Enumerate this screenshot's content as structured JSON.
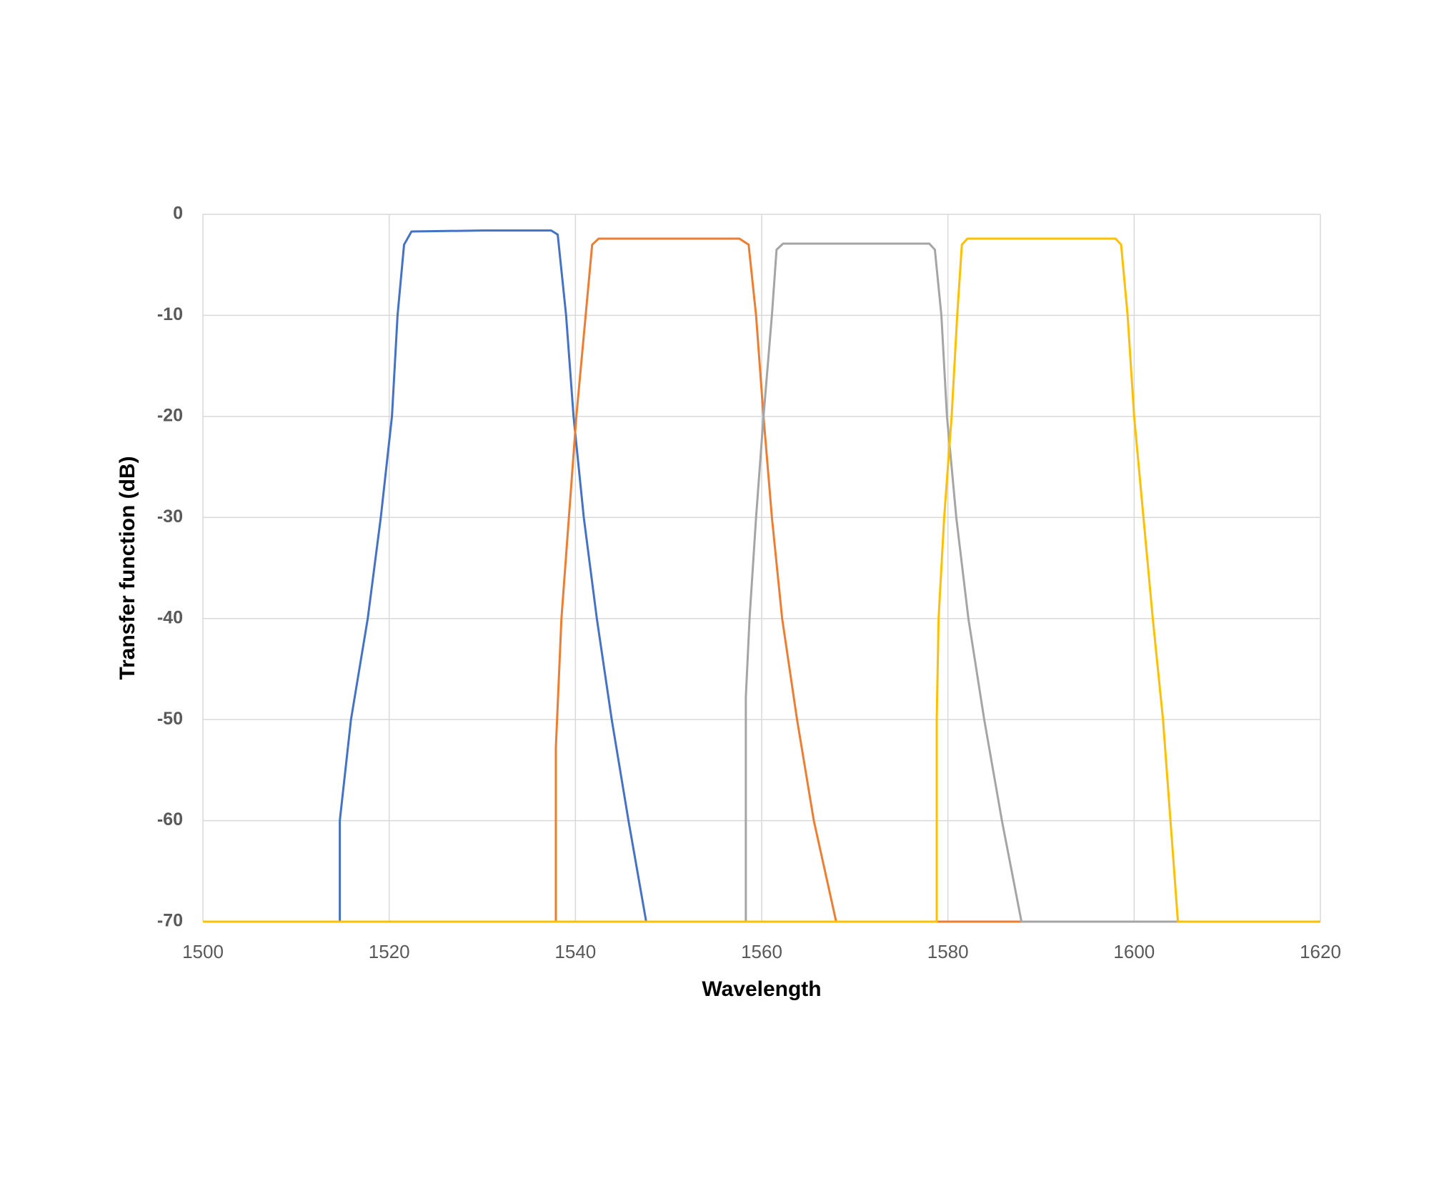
{
  "chart_data": {
    "type": "line",
    "x_label": "Wavelength",
    "y_label": "Transfer function (dB)",
    "xlim": [
      1500,
      1620
    ],
    "xticks": [
      1500,
      1520,
      1540,
      1560,
      1580,
      1600,
      1620
    ],
    "ylim": [
      -70,
      0
    ],
    "yticks": [
      0,
      -10,
      -20,
      -30,
      -40,
      -50,
      -60,
      -70
    ],
    "grid": true,
    "series": [
      {
        "color": "#4472c4",
        "x": [
          1500,
          1514.7,
          1514.7,
          1515.9,
          1517.7,
          1519.1,
          1520.3,
          1520.9,
          1521.6,
          1522.4,
          1530,
          1537.4,
          1538.1,
          1539.0,
          1539.8,
          1540.9,
          1542.3,
          1543.9,
          1545.7,
          1547.6,
          1620
        ],
        "values": [
          -70,
          -70,
          -60,
          -50,
          -40,
          -30,
          -20,
          -10,
          -3,
          -1.7,
          -1.6,
          -1.6,
          -2,
          -10,
          -20,
          -30,
          -40,
          -50,
          -60,
          -70,
          -70
        ]
      },
      {
        "color": "#ed7d31",
        "x": [
          1500,
          1537.9,
          1537.9,
          1538.5,
          1539.3,
          1540.1,
          1541.1,
          1541.8,
          1542.5,
          1557.6,
          1558.6,
          1559.4,
          1560.2,
          1561.1,
          1562.2,
          1563.8,
          1565.6,
          1568.0,
          1620
        ],
        "values": [
          -70,
          -70,
          -52.8,
          -40,
          -30,
          -20,
          -10,
          -3,
          -2.4,
          -2.4,
          -3,
          -10,
          -20,
          -30,
          -40,
          -50,
          -60,
          -70,
          -70
        ]
      },
      {
        "color": "#a5a5a5",
        "x": [
          1500,
          1558.3,
          1558.3,
          1558.7,
          1559.4,
          1560.2,
          1561.1,
          1561.6,
          1562.3,
          1578.0,
          1578.6,
          1579.3,
          1579.9,
          1580.9,
          1582.2,
          1583.9,
          1585.8,
          1587.9,
          1620
        ],
        "values": [
          -70,
          -70,
          -47.8,
          -40,
          -30,
          -20,
          -10,
          -3.5,
          -2.9,
          -2.9,
          -3.5,
          -10,
          -20,
          -30,
          -40,
          -50,
          -60,
          -70,
          -70
        ]
      },
      {
        "color": "#ffc000",
        "x": [
          1500,
          1578.8,
          1578.8,
          1579.0,
          1579.6,
          1580.4,
          1581.0,
          1581.5,
          1582.1,
          1598.0,
          1598.6,
          1599.3,
          1600.0,
          1601.0,
          1602.0,
          1603.1,
          1603.9,
          1604.7,
          1620
        ],
        "values": [
          -70,
          -70,
          -50,
          -40,
          -30,
          -20,
          -10,
          -3,
          -2.4,
          -2.4,
          -3,
          -10,
          -20,
          -30,
          -40,
          -50,
          -60,
          -70,
          -70
        ]
      }
    ]
  }
}
